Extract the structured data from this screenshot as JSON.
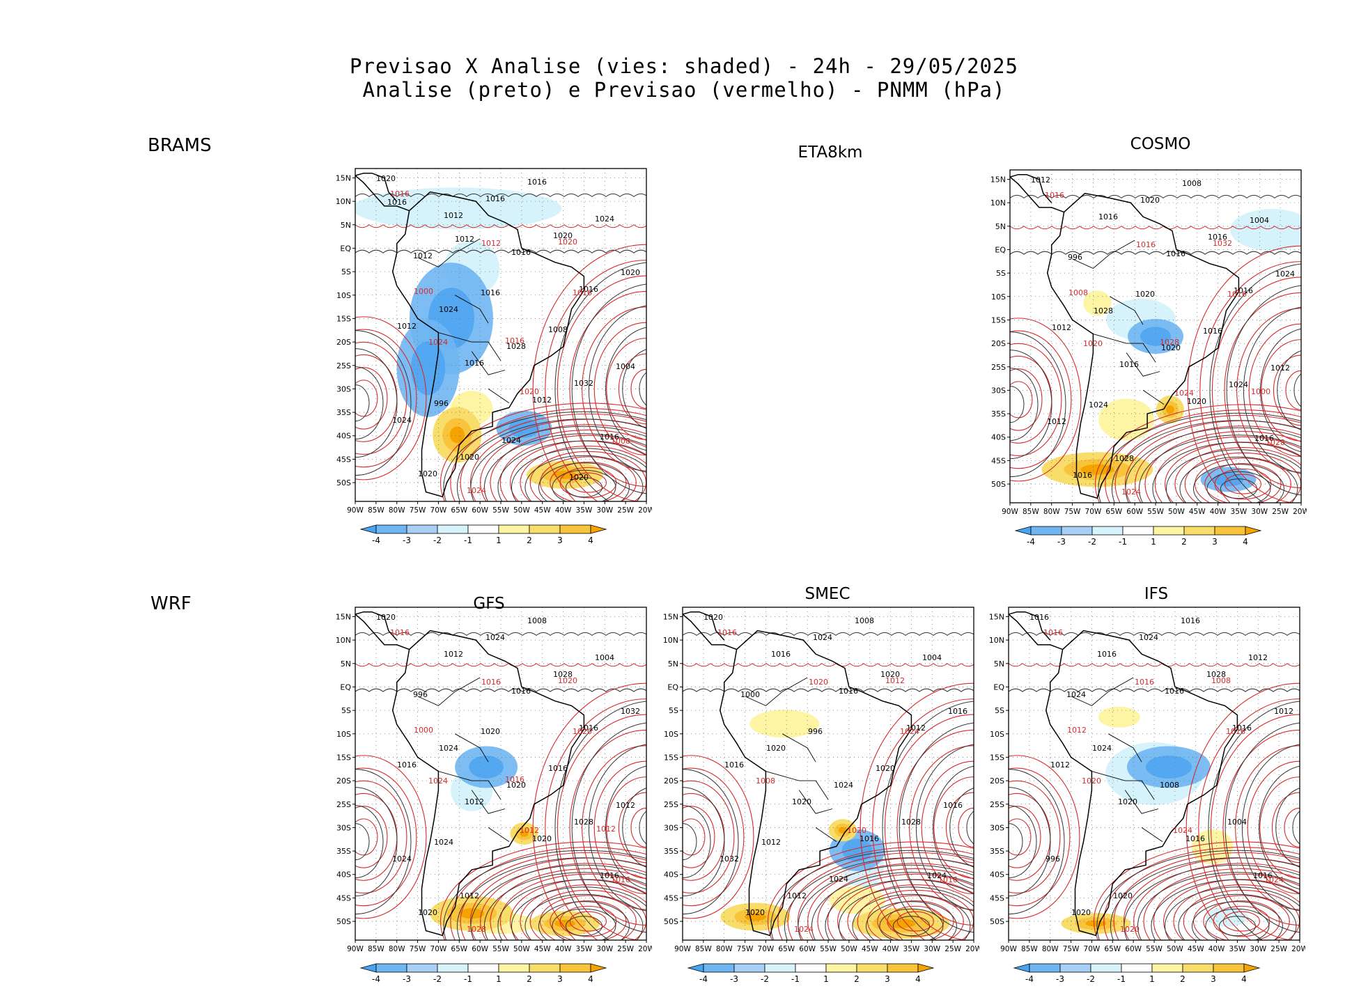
{
  "titles": {
    "line1": "Previsao X Analise (vies: shaded) - 24h - 29/05/2025",
    "line2": "Analise (preto) e Previsao (vermelho) - PNMM (hPa)"
  },
  "row_labels": [
    "BRAMS",
    "WRF"
  ],
  "axes": {
    "lat_ticks": [
      "15N",
      "10N",
      "5N",
      "EQ",
      "5S",
      "10S",
      "15S",
      "20S",
      "25S",
      "30S",
      "35S",
      "40S",
      "45S",
      "50S"
    ],
    "lon_ticks": [
      "90W",
      "85W",
      "80W",
      "75W",
      "70W",
      "65W",
      "60W",
      "55W",
      "50W",
      "45W",
      "40W",
      "35W",
      "30W",
      "25W",
      "20W"
    ]
  },
  "colorbar": {
    "labels": [
      "-4",
      "-3",
      "-2",
      "-1",
      "1",
      "2",
      "3",
      "4"
    ],
    "colors": [
      "#4aa3f0",
      "#6fb6f2",
      "#a8d0f7",
      "#d6f3fb",
      "#ffffff",
      "#fdf4a4",
      "#f9dd6a",
      "#f7c43c",
      "#f5a300"
    ]
  },
  "panels": [
    {
      "id": "brams",
      "title": "",
      "shown": true,
      "colorbar": true,
      "black_labels": [
        "1020",
        "1012",
        "1016",
        "1016",
        "1012",
        "1016",
        "1012",
        "1016",
        "1020",
        "1016",
        "1020",
        "1020",
        "1024",
        "1028",
        "1032",
        "1024",
        "1020",
        "1016",
        "1024",
        "1012",
        "1016",
        "1008",
        "1004",
        "996",
        "1024",
        "1020",
        "1016",
        "1012"
      ],
      "red_labels": [
        "1016",
        "1012",
        "1016",
        "1024",
        "1020",
        "1008",
        "1024",
        "1020",
        "1000",
        "1016"
      ]
    },
    {
      "id": "eta8km",
      "title": "ETA8km",
      "shown": false,
      "colorbar": false,
      "black_labels": [],
      "red_labels": []
    },
    {
      "id": "cosmo",
      "title": "COSMO",
      "shown": true,
      "colorbar": true,
      "black_labels": [
        "1012",
        "1016",
        "1016",
        "1016",
        "1012",
        "1016",
        "1020",
        "1016",
        "1016",
        "1020",
        "1016",
        "1024",
        "1028",
        "1020",
        "1024",
        "1012",
        "1028",
        "1008",
        "1004",
        "996",
        "1020",
        "1016",
        "1012",
        "1024"
      ],
      "red_labels": [
        "1016",
        "1016",
        "1016",
        "1020",
        "1024",
        "1028",
        "1024",
        "1032",
        "1008",
        "1028",
        "1000"
      ]
    },
    {
      "id": "gfs",
      "title": "GFS",
      "shown": true,
      "colorbar": true,
      "black_labels": [
        "1020",
        "1012",
        "1016",
        "1016",
        "1016",
        "1012",
        "1020",
        "1016",
        "1020",
        "1024",
        "1028",
        "1032",
        "1024",
        "1020",
        "1028",
        "1024",
        "1012",
        "1008",
        "1004",
        "996",
        "1020",
        "1016",
        "1012",
        "1024"
      ],
      "red_labels": [
        "1016",
        "1016",
        "1020",
        "1024",
        "1012",
        "1016",
        "1028",
        "1020",
        "1000",
        "1016",
        "1012"
      ]
    },
    {
      "id": "smec",
      "title": "SMEC",
      "shown": true,
      "colorbar": true,
      "black_labels": [
        "1020",
        "1016",
        "1016",
        "1012",
        "1016",
        "1020",
        "1016",
        "1024",
        "1020",
        "1024",
        "1020",
        "1016",
        "1020",
        "1024",
        "1028",
        "1032",
        "1012",
        "1008",
        "1004",
        "1000",
        "996",
        "1020",
        "1016",
        "1012",
        "1024"
      ],
      "red_labels": [
        "1016",
        "1020",
        "1024",
        "1008",
        "1020",
        "1016",
        "1024",
        "1012"
      ]
    },
    {
      "id": "ifs",
      "title": "IFS",
      "shown": true,
      "colorbar": true,
      "black_labels": [
        "1016",
        "1016",
        "1016",
        "1016",
        "1012",
        "1020",
        "1016",
        "1016",
        "1020",
        "1024",
        "1028",
        "1012",
        "1024",
        "1008",
        "1004",
        "996",
        "1020",
        "1016",
        "1012",
        "1024"
      ],
      "red_labels": [
        "1016",
        "1016",
        "1016",
        "1020",
        "1024",
        "1024",
        "1020",
        "1008",
        "1012"
      ]
    }
  ]
}
